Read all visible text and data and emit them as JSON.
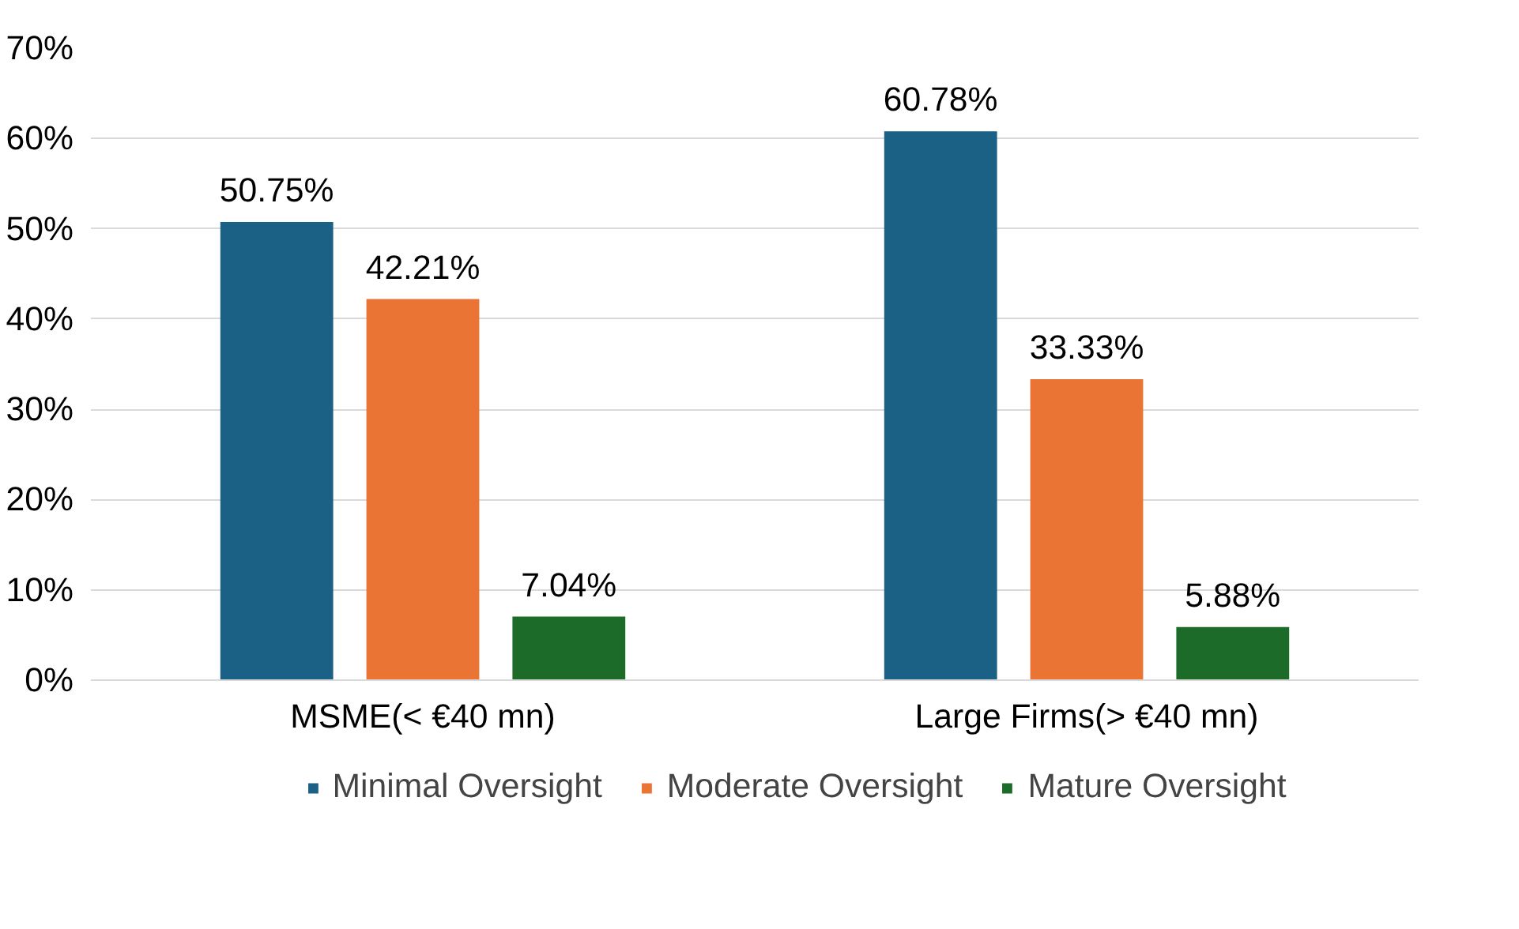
{
  "chart_data": {
    "type": "bar",
    "categories": [
      "MSME(< €40 mn)",
      "Large Firms(> €40 mn)"
    ],
    "series": [
      {
        "name": "Minimal Oversight",
        "color": "#1a6185",
        "values": [
          50.75,
          60.78
        ],
        "value_labels": [
          "50.75%",
          "60.78%"
        ]
      },
      {
        "name": "Moderate Oversight",
        "color": "#ea7434",
        "values": [
          42.21,
          33.33
        ],
        "value_labels": [
          "42.21%",
          "33.33%"
        ]
      },
      {
        "name": "Mature Oversight",
        "color": "#1c6b28",
        "values": [
          7.04,
          5.88
        ],
        "value_labels": [
          "7.04%",
          "5.88%"
        ]
      }
    ],
    "ylim": [
      0,
      70
    ],
    "yticks": [
      {
        "value": 0,
        "label": "0%"
      },
      {
        "value": 10,
        "label": "10%"
      },
      {
        "value": 20,
        "label": "20%"
      },
      {
        "value": 30,
        "label": "30%"
      },
      {
        "value": 40,
        "label": "40%"
      },
      {
        "value": 50,
        "label": "50%"
      },
      {
        "value": 60,
        "label": "60%"
      },
      {
        "value": 70,
        "label": "70%"
      }
    ],
    "grid": "y",
    "legend": "bottom"
  }
}
